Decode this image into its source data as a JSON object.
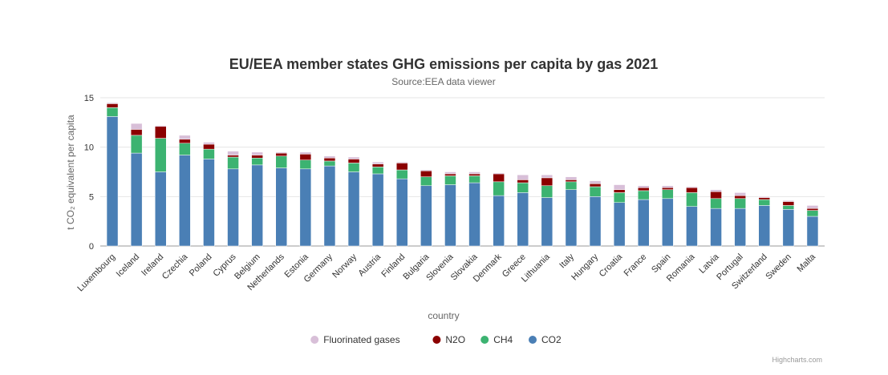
{
  "chart_data": {
    "type": "bar",
    "stacked": true,
    "title": "EU/EEA member states GHG emissions per capita by gas 2021",
    "subtitle": "Source:EEA data viewer",
    "xlabel": "country",
    "ylabel": "t CO₂ equivalent per capita",
    "ylim": [
      0,
      15
    ],
    "yticks": [
      "0",
      "5",
      "10",
      "15"
    ],
    "grid": true,
    "legend_position": "bottom-center",
    "categories": [
      "Luxembourg",
      "Iceland",
      "Ireland",
      "Czechia",
      "Poland",
      "Cyprus",
      "Belgium",
      "Netherlands",
      "Estonia",
      "Germany",
      "Norway",
      "Austria",
      "Finland",
      "Bulgaria",
      "Slovenia",
      "Slovakia",
      "Denmark",
      "Greece",
      "Lithuania",
      "Italy",
      "Hungary",
      "Croatia",
      "France",
      "Spain",
      "Romania",
      "Latvia",
      "Portugal",
      "Switzerland",
      "Sweden",
      "Malta"
    ],
    "series": [
      {
        "name": "CO2",
        "color": "#4a7fb5",
        "values": [
          13.1,
          9.4,
          7.5,
          9.2,
          8.8,
          7.8,
          8.2,
          7.9,
          7.8,
          8.1,
          7.5,
          7.3,
          6.8,
          6.1,
          6.2,
          6.4,
          5.1,
          5.4,
          4.9,
          5.7,
          5.0,
          4.4,
          4.7,
          4.8,
          4.0,
          3.8,
          3.8,
          4.1,
          3.7,
          3.0
        ]
      },
      {
        "name": "CH4",
        "color": "#3cb371",
        "values": [
          0.9,
          1.8,
          3.4,
          1.2,
          1.0,
          1.2,
          0.7,
          1.2,
          0.9,
          0.5,
          0.9,
          0.7,
          0.9,
          0.9,
          0.9,
          0.7,
          1.4,
          1.0,
          1.2,
          0.8,
          1.0,
          1.0,
          0.9,
          0.9,
          1.4,
          1.0,
          1.0,
          0.6,
          0.4,
          0.6
        ]
      },
      {
        "name": "N2O",
        "color": "#8b0000",
        "values": [
          0.4,
          0.6,
          1.2,
          0.4,
          0.5,
          0.2,
          0.3,
          0.3,
          0.6,
          0.3,
          0.4,
          0.3,
          0.7,
          0.6,
          0.2,
          0.2,
          0.8,
          0.3,
          0.8,
          0.2,
          0.3,
          0.3,
          0.3,
          0.2,
          0.5,
          0.7,
          0.3,
          0.2,
          0.4,
          0.2
        ]
      },
      {
        "name": "Fluorinated gases",
        "color": "#d8bfd8",
        "values": [
          0.1,
          0.6,
          0.1,
          0.4,
          0.2,
          0.4,
          0.3,
          0.1,
          0.2,
          0.2,
          0.2,
          0.2,
          0.1,
          0.1,
          0.2,
          0.2,
          0.1,
          0.5,
          0.3,
          0.3,
          0.3,
          0.5,
          0.2,
          0.2,
          0.1,
          0.2,
          0.3,
          0.1,
          0.1,
          0.3
        ]
      }
    ],
    "legend_order": [
      "Fluorinated gases",
      "N2O",
      "CH4",
      "CO2"
    ]
  },
  "credits": "Highcharts.com"
}
